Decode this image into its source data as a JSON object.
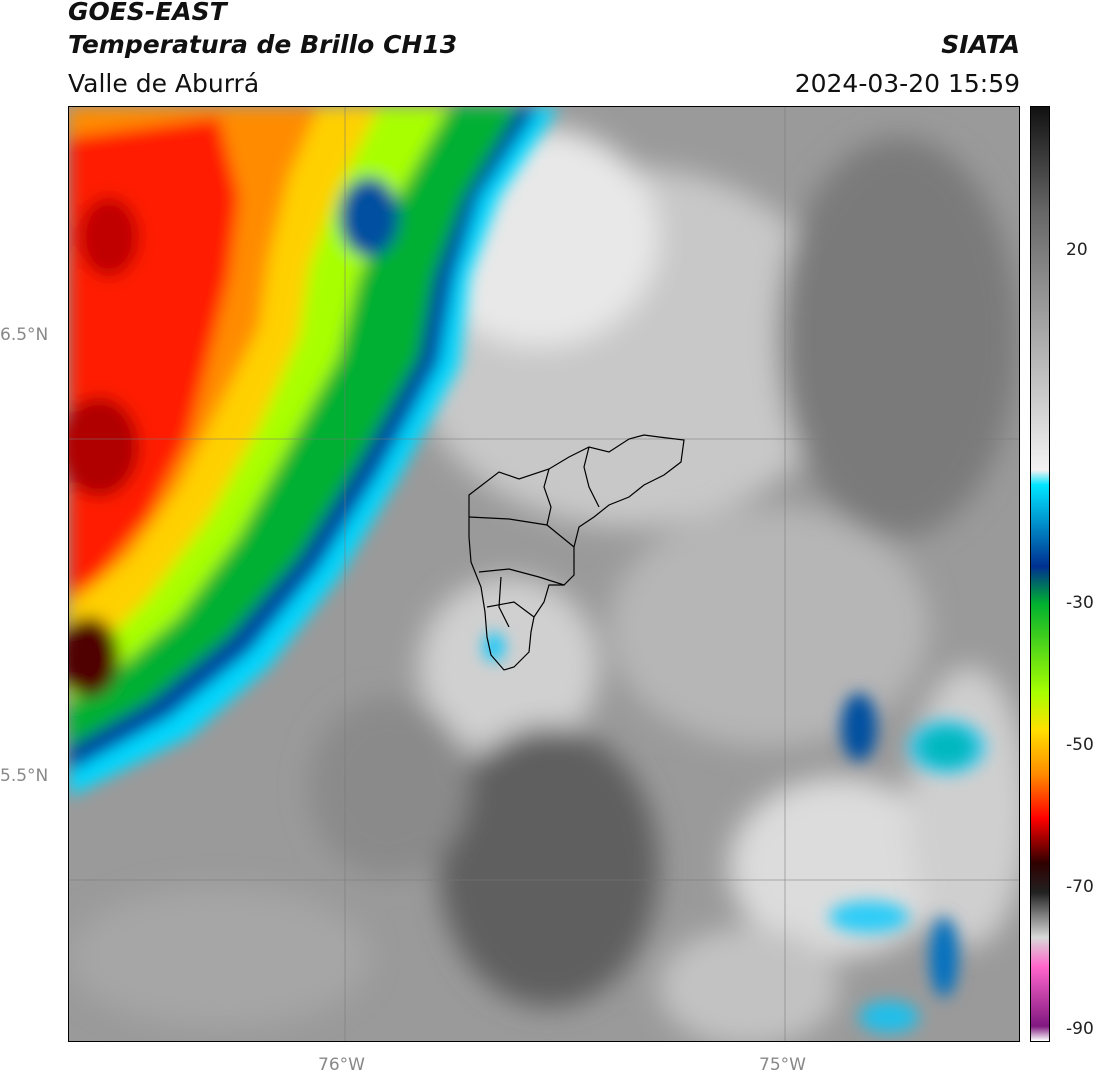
{
  "header": {
    "satellite": "GOES-EAST",
    "product": "Temperatura de Brillo CH13",
    "region": "Valle de Aburrá",
    "agency": "SIATA",
    "datetime": "2024-03-20 15:59"
  },
  "map": {
    "lat_labels": [
      "6.5°N",
      "5.5°N"
    ],
    "lon_labels": [
      "76°W",
      "75°W"
    ]
  },
  "colorbar": {
    "ticks": [
      "20",
      "-30",
      "-50",
      "-70",
      "-90"
    ],
    "range": [
      -92,
      34
    ],
    "palette_stops": [
      {
        "value": 34,
        "color": "#111111"
      },
      {
        "value": 20,
        "color": "#666666"
      },
      {
        "value": -15,
        "color": "#f2f2f2"
      },
      {
        "value": -17,
        "color": "#00e5ff"
      },
      {
        "value": -28,
        "color": "#003090"
      },
      {
        "value": -33,
        "color": "#00b030"
      },
      {
        "value": -45,
        "color": "#a8ff00"
      },
      {
        "value": -50,
        "color": "#ffe000"
      },
      {
        "value": -56,
        "color": "#ff8c00"
      },
      {
        "value": -62,
        "color": "#ff0000"
      },
      {
        "value": -68,
        "color": "#300000"
      },
      {
        "value": -72,
        "color": "#222222"
      },
      {
        "value": -78,
        "color": "#d8d8d8"
      },
      {
        "value": -82,
        "color": "#ff66cc"
      },
      {
        "value": -90,
        "color": "#801880"
      },
      {
        "value": -92,
        "color": "#ffffff"
      }
    ]
  }
}
